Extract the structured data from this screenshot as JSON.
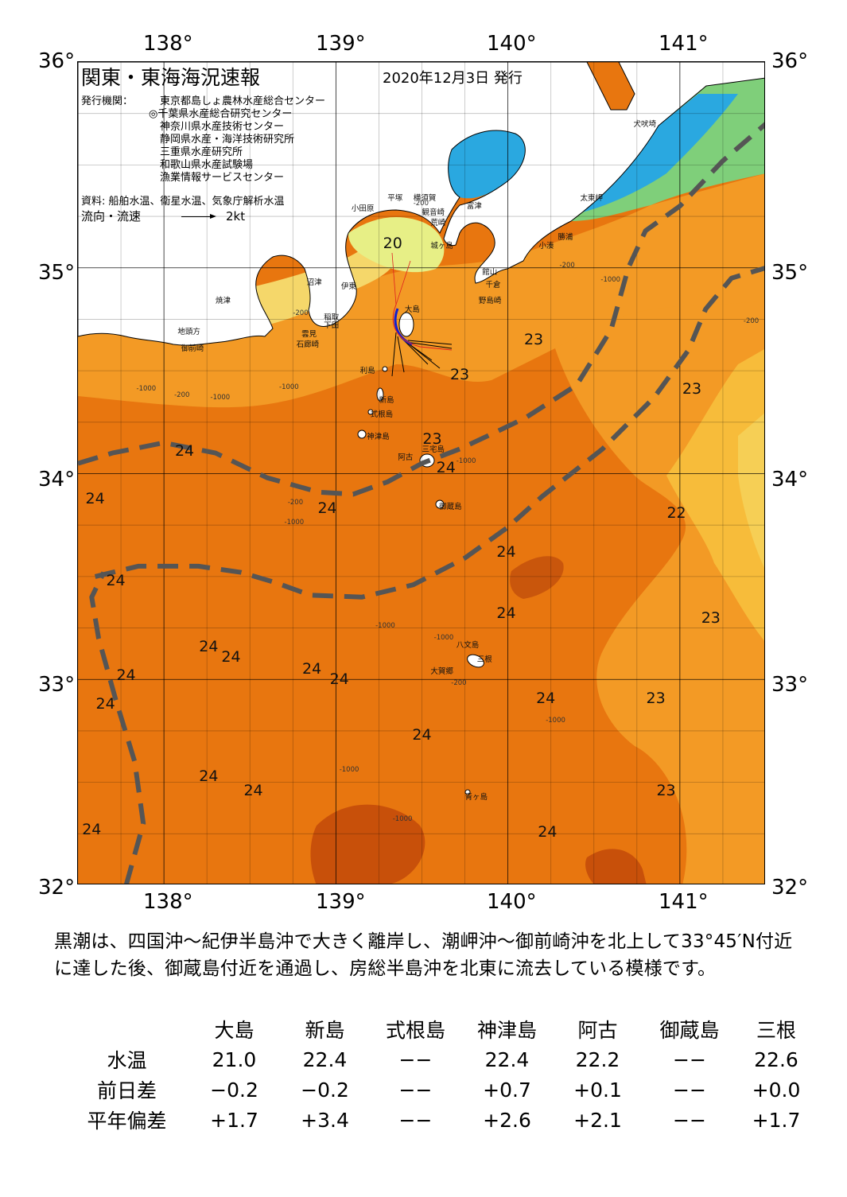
{
  "map": {
    "title": "関東・東海海況速報",
    "issue_date": "2020年12月3日 発行",
    "publisher_label": "発行機関：",
    "publishers": [
      "東京都島しょ農林水産総合センター",
      "◎千葉県水産総合研究センター",
      "神奈川県水産技術センター",
      "静岡県水産・海洋技術研究所",
      "三重県水産研究所",
      "和歌山県水産試験場",
      "漁業情報サービスセンター"
    ],
    "source": "資料: 船舶水温、衛星水温、気象庁解析水温",
    "current_legend_label": "流向・流速",
    "current_legend_unit": "2kt",
    "lon_ticks_top": [
      "138°",
      "139°",
      "140°",
      "141°"
    ],
    "lon_ticks_bottom": [
      "138°",
      "139°",
      "140°",
      "141°"
    ],
    "lat_ticks_left": [
      "36°",
      "35°",
      "34°",
      "33°",
      "32°"
    ],
    "lat_ticks_right": [
      "36°",
      "35°",
      "34°",
      "33°",
      "32°"
    ],
    "temperature_labels": [
      {
        "text": "20",
        "lon": 139.33,
        "lat": 35.12
      },
      {
        "text": "23",
        "lon": 140.15,
        "lat": 34.65
      },
      {
        "text": "23",
        "lon": 139.72,
        "lat": 34.48
      },
      {
        "text": "23",
        "lon": 141.07,
        "lat": 34.41
      },
      {
        "text": "23",
        "lon": 139.56,
        "lat": 34.17
      },
      {
        "text": "24",
        "lon": 138.12,
        "lat": 34.11
      },
      {
        "text": "24",
        "lon": 139.64,
        "lat": 34.03
      },
      {
        "text": "24",
        "lon": 137.6,
        "lat": 33.88
      },
      {
        "text": "24",
        "lon": 138.95,
        "lat": 33.83
      },
      {
        "text": "22",
        "lon": 140.98,
        "lat": 33.81
      },
      {
        "text": "24",
        "lon": 139.99,
        "lat": 33.62
      },
      {
        "text": "24",
        "lon": 137.72,
        "lat": 33.48
      },
      {
        "text": "24",
        "lon": 139.99,
        "lat": 33.32
      },
      {
        "text": "23",
        "lon": 141.18,
        "lat": 33.3
      },
      {
        "text": "24",
        "lon": 138.26,
        "lat": 33.16
      },
      {
        "text": "24",
        "lon": 138.39,
        "lat": 33.11
      },
      {
        "text": "24",
        "lon": 138.86,
        "lat": 33.05
      },
      {
        "text": "24",
        "lon": 139.02,
        "lat": 33.0
      },
      {
        "text": "24",
        "lon": 137.78,
        "lat": 33.02
      },
      {
        "text": "24",
        "lon": 137.66,
        "lat": 32.88
      },
      {
        "text": "24",
        "lon": 140.22,
        "lat": 32.91
      },
      {
        "text": "23",
        "lon": 140.86,
        "lat": 32.91
      },
      {
        "text": "24",
        "lon": 139.5,
        "lat": 32.73
      },
      {
        "text": "24",
        "lon": 138.26,
        "lat": 32.53
      },
      {
        "text": "24",
        "lon": 138.52,
        "lat": 32.46
      },
      {
        "text": "23",
        "lon": 140.92,
        "lat": 32.46
      },
      {
        "text": "24",
        "lon": 137.58,
        "lat": 32.27
      },
      {
        "text": "24",
        "lon": 140.23,
        "lat": 32.26
      }
    ],
    "place_names": [
      {
        "text": "犬吠埼",
        "lon": 140.73,
        "lat": 35.73
      },
      {
        "text": "太東岬",
        "lon": 140.42,
        "lat": 35.37
      },
      {
        "text": "勝浦",
        "lon": 140.29,
        "lat": 35.18
      },
      {
        "text": "小湊",
        "lon": 140.18,
        "lat": 35.14
      },
      {
        "text": "小田原",
        "lon": 139.09,
        "lat": 35.32
      },
      {
        "text": "平塚",
        "lon": 139.3,
        "lat": 35.37
      },
      {
        "text": "横須賀",
        "lon": 139.45,
        "lat": 35.37
      },
      {
        "text": "観音崎",
        "lon": 139.5,
        "lat": 35.3
      },
      {
        "text": "富津",
        "lon": 139.76,
        "lat": 35.33
      },
      {
        "text": "荒崎",
        "lon": 139.55,
        "lat": 35.25
      },
      {
        "text": "城ヶ島",
        "lon": 139.55,
        "lat": 35.14
      },
      {
        "text": "館山",
        "lon": 139.85,
        "lat": 35.01
      },
      {
        "text": "千倉",
        "lon": 139.87,
        "lat": 34.95
      },
      {
        "text": "野島崎",
        "lon": 139.83,
        "lat": 34.87
      },
      {
        "text": "沼津",
        "lon": 138.83,
        "lat": 34.96
      },
      {
        "text": "伊東",
        "lon": 139.03,
        "lat": 34.94
      },
      {
        "text": "焼津",
        "lon": 138.3,
        "lat": 34.87
      },
      {
        "text": "稲取",
        "lon": 138.93,
        "lat": 34.79
      },
      {
        "text": "下田",
        "lon": 138.93,
        "lat": 34.75
      },
      {
        "text": "雲見",
        "lon": 138.8,
        "lat": 34.71
      },
      {
        "text": "石廊崎",
        "lon": 138.77,
        "lat": 34.66
      },
      {
        "text": "地頭方",
        "lon": 138.08,
        "lat": 34.72
      },
      {
        "text": "御前崎",
        "lon": 138.1,
        "lat": 34.64
      },
      {
        "text": "大島",
        "lon": 139.4,
        "lat": 34.83
      },
      {
        "text": "利島",
        "lon": 139.14,
        "lat": 34.53
      },
      {
        "text": "新島",
        "lon": 139.25,
        "lat": 34.39
      },
      {
        "text": "式根島",
        "lon": 139.2,
        "lat": 34.32
      },
      {
        "text": "神津島",
        "lon": 139.18,
        "lat": 34.21
      },
      {
        "text": "三宅島",
        "lon": 139.5,
        "lat": 34.15
      },
      {
        "text": "阿古",
        "lon": 139.36,
        "lat": 34.11
      },
      {
        "text": "御蔵島",
        "lon": 139.6,
        "lat": 33.87
      },
      {
        "text": "八文島",
        "lon": 139.7,
        "lat": 33.2
      },
      {
        "text": "三根",
        "lon": 139.82,
        "lat": 33.13
      },
      {
        "text": "大賀郷",
        "lon": 139.55,
        "lat": 33.07
      },
      {
        "text": "青ヶ島",
        "lon": 139.75,
        "lat": 32.46
      }
    ],
    "depth_labels": [
      {
        "text": "-200",
        "lon": 139.45,
        "lat": 35.33
      },
      {
        "text": "-200",
        "lon": 140.3,
        "lat": 35.03
      },
      {
        "text": "-1000",
        "lon": 140.54,
        "lat": 34.96
      },
      {
        "text": "-200",
        "lon": 138.75,
        "lat": 34.8
      },
      {
        "text": "-1000",
        "lon": 138.67,
        "lat": 34.44
      },
      {
        "text": "-200",
        "lon": 138.06,
        "lat": 34.4
      },
      {
        "text": "-1000",
        "lon": 137.84,
        "lat": 34.43
      },
      {
        "text": "-1000",
        "lon": 138.27,
        "lat": 34.39
      },
      {
        "text": "-200",
        "lon": 138.72,
        "lat": 33.88
      },
      {
        "text": "-1000",
        "lon": 138.7,
        "lat": 33.78
      },
      {
        "text": "-1000",
        "lon": 139.7,
        "lat": 34.08
      },
      {
        "text": "-1000",
        "lon": 139.23,
        "lat": 33.28
      },
      {
        "text": "-1000",
        "lon": 139.57,
        "lat": 33.22
      },
      {
        "text": "-200",
        "lon": 139.67,
        "lat": 33.0
      },
      {
        "text": "-1000",
        "lon": 140.22,
        "lat": 32.82
      },
      {
        "text": "-1000",
        "lon": 139.02,
        "lat": 32.58
      },
      {
        "text": "-1000",
        "lon": 139.33,
        "lat": 32.34
      },
      {
        "text": "-200",
        "lon": 141.37,
        "lat": 34.76
      }
    ],
    "kuroshio_axes": [
      [
        [
          137.5,
          34.05
        ],
        [
          137.7,
          34.1
        ],
        [
          138.0,
          34.15
        ],
        [
          138.3,
          34.1
        ],
        [
          138.6,
          33.98
        ],
        [
          138.9,
          33.91
        ],
        [
          139.1,
          33.9
        ],
        [
          139.3,
          33.96
        ],
        [
          139.5,
          34.05
        ],
        [
          139.72,
          34.12
        ],
        [
          139.9,
          34.19
        ],
        [
          140.1,
          34.27
        ],
        [
          140.4,
          34.43
        ],
        [
          140.6,
          34.7
        ],
        [
          140.7,
          35.0
        ],
        [
          140.8,
          35.18
        ],
        [
          141.0,
          35.3
        ],
        [
          141.25,
          35.52
        ],
        [
          141.5,
          35.7
        ]
      ],
      [
        [
          137.6,
          33.5
        ],
        [
          137.85,
          33.55
        ],
        [
          138.2,
          33.55
        ],
        [
          138.45,
          33.52
        ],
        [
          138.65,
          33.47
        ],
        [
          138.85,
          33.41
        ],
        [
          139.15,
          33.4
        ],
        [
          139.45,
          33.46
        ],
        [
          139.75,
          33.59
        ],
        [
          140.0,
          33.74
        ],
        [
          140.2,
          33.89
        ],
        [
          140.55,
          34.12
        ],
        [
          140.85,
          34.37
        ],
        [
          141.05,
          34.6
        ],
        [
          141.15,
          34.8
        ],
        [
          141.3,
          34.95
        ],
        [
          141.5,
          35.0
        ]
      ],
      [
        [
          137.78,
          32.0
        ],
        [
          137.88,
          32.3
        ],
        [
          137.83,
          32.6
        ],
        [
          137.72,
          32.9
        ],
        [
          137.62,
          33.2
        ],
        [
          137.58,
          33.4
        ],
        [
          137.65,
          33.52
        ]
      ]
    ]
  },
  "description": "黒潮は、四国沖～紀伊半島沖で大きく離岸し、潮岬沖～御前崎沖を北上して33°45′N付近に達した後、御蔵島付近を通過し、房総半島沖を北東に流去している模様です。",
  "station_table": {
    "stations": [
      "大島",
      "新島",
      "式根島",
      "神津島",
      "阿古",
      "御蔵島",
      "三根"
    ],
    "rows": [
      {
        "label": "水温",
        "values": [
          "21.0",
          "22.4",
          "−−",
          "22.4",
          "22.2",
          "−−",
          "22.6"
        ]
      },
      {
        "label": "前日差",
        "values": [
          "−0.2",
          "−0.2",
          "−−",
          "+0.7",
          "+0.1",
          "−−",
          "+0.0"
        ]
      },
      {
        "label": "平年偏差",
        "values": [
          "+1.7",
          "+3.4",
          "−−",
          "+2.6",
          "+2.1",
          "−−",
          "+1.7"
        ]
      }
    ]
  },
  "colors": {
    "warm_24": "#e8760f",
    "warm_23": "#f39a25",
    "mild_22": "#f7bc3a",
    "cool_21": "#f4d86a",
    "pale_20": "#eaf08a",
    "cold_coast": "#2aa8e0",
    "deep_warm": "#c8500a",
    "land": "#ffffff",
    "kuroshio_axis": "#555555"
  }
}
